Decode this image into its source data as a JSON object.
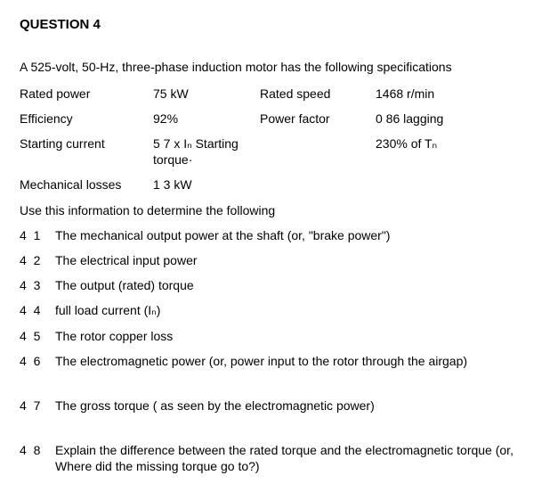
{
  "heading": "QUESTION 4",
  "intro": "A 525-volt, 50-Hz, three-phase induction motor has the following specifications",
  "specs": [
    {
      "l1": "Rated power",
      "v1": "75 kW",
      "l2": "Rated speed",
      "v2": "1468 r/min"
    },
    {
      "l1": "Efficiency",
      "v1": "92%",
      "l2": "Power factor",
      "v2": "0 86 lagging"
    },
    {
      "l1": "Starting current",
      "v1": "5 7 x Iₙ Starting torque·",
      "l2": "",
      "v2": "230% of Tₙ"
    },
    {
      "l1": "Mechanical losses",
      "v1": "1 3 kW",
      "l2": "",
      "v2": ""
    }
  ],
  "lead": "Use this information to determine the following",
  "questions": [
    {
      "n": "4 1",
      "t": "The mechanical output power at the shaft (or, \"brake power\")"
    },
    {
      "n": "4 2",
      "t": "The electrical input power"
    },
    {
      "n": "4 3",
      "t": "The output (rated) torque"
    },
    {
      "n": "4 4",
      "t": "full load current (Iₙ)"
    },
    {
      "n": "4 5",
      "t": "The rotor copper loss"
    },
    {
      "n": "4 6",
      "t": "The electromagnetic power (or, power input to the rotor through the airgap)"
    },
    {
      "n": "4 7",
      "t": "The gross torque ( as seen by the electromagnetic power)"
    },
    {
      "n": "4 8",
      "t": "Explain the difference between the rated torque and the electromagnetic torque  (or, Where did the missing torque go to?)"
    }
  ]
}
